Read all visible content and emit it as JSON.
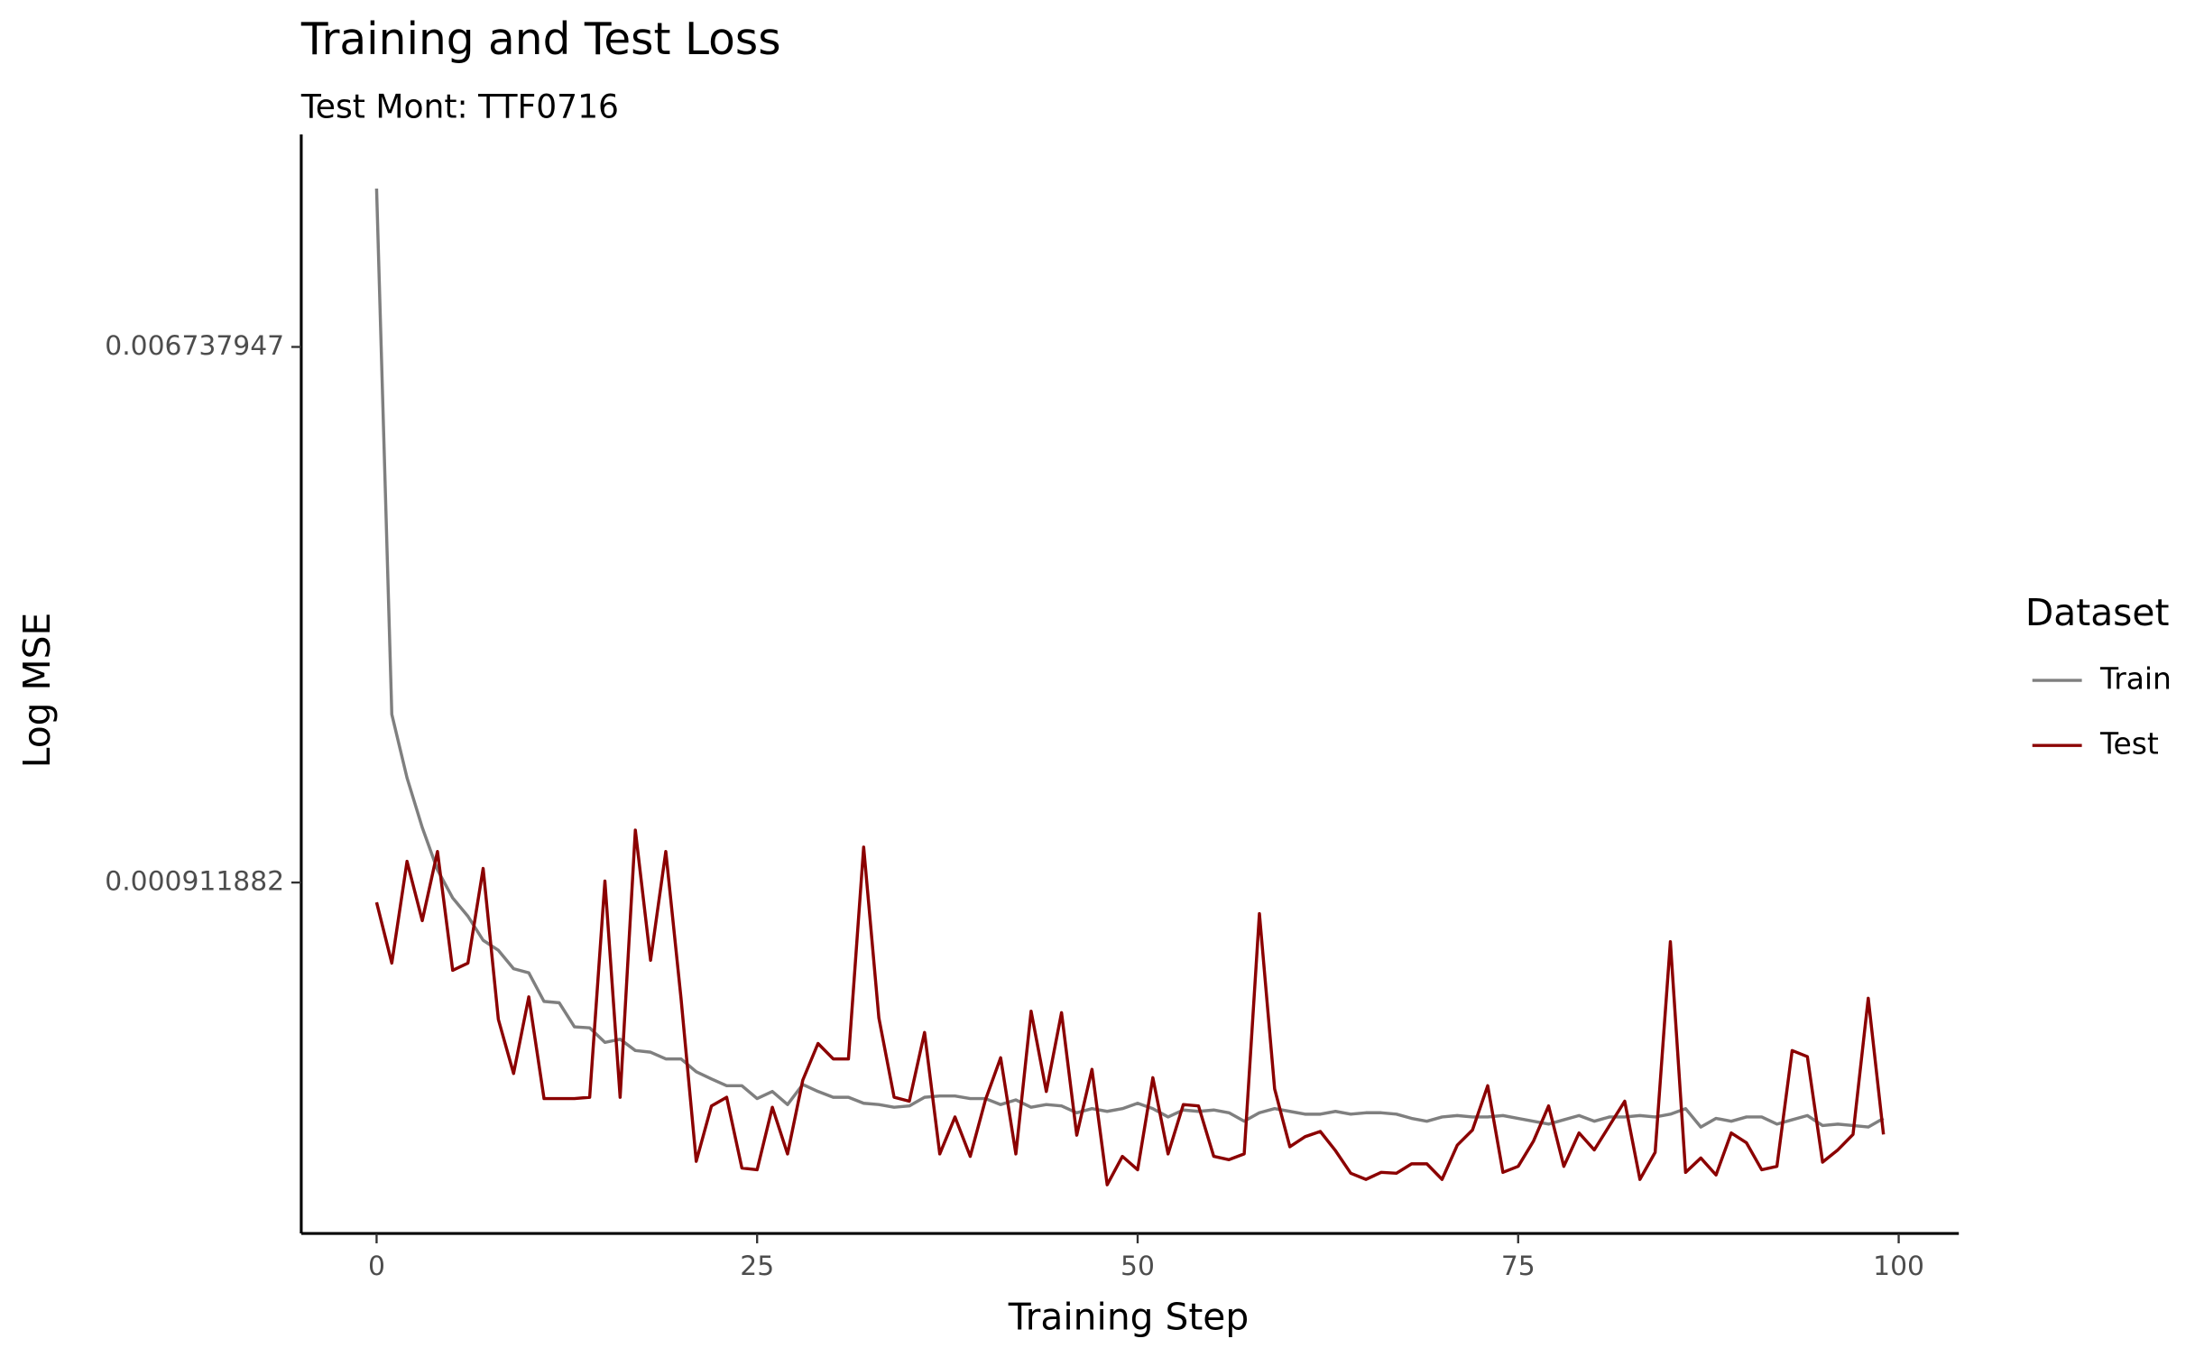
{
  "chart_data": {
    "type": "line",
    "title": "Training and Test Loss",
    "subtitle": "Test Mont: TTF0716",
    "x_label": "Training Step",
    "y_label": "Log MSE",
    "legend_title": "Dataset",
    "log_y": true,
    "grid": false,
    "x": [
      0,
      1,
      2,
      3,
      4,
      5,
      6,
      7,
      8,
      9,
      10,
      11,
      12,
      13,
      14,
      15,
      16,
      17,
      18,
      19,
      20,
      21,
      22,
      23,
      24,
      25,
      26,
      27,
      28,
      29,
      30,
      31,
      32,
      33,
      34,
      35,
      36,
      37,
      38,
      39,
      40,
      41,
      42,
      43,
      44,
      45,
      46,
      47,
      48,
      49,
      50,
      51,
      52,
      53,
      54,
      55,
      56,
      57,
      58,
      59,
      60,
      61,
      62,
      63,
      64,
      65,
      66,
      67,
      68,
      69,
      70,
      71,
      72,
      73,
      74,
      75,
      76,
      77,
      78,
      79,
      80,
      81,
      82,
      83,
      84,
      85,
      86,
      87,
      88,
      89,
      90,
      91,
      92,
      93,
      94,
      95,
      96,
      97,
      98,
      99
    ],
    "series": [
      {
        "name": "Train",
        "color": "#7f7f7f",
        "values": [
          0.01217,
          0.001709,
          0.001348,
          0.00112,
          0.000956,
          0.000861,
          0.000804,
          0.000735,
          0.000708,
          0.000661,
          0.000651,
          0.000585,
          0.000582,
          0.000532,
          0.00053,
          0.000502,
          0.000508,
          0.000487,
          0.000484,
          0.000472,
          0.000472,
          0.00045,
          0.000438,
          0.000427,
          0.000427,
          0.000407,
          0.000418,
          0.000398,
          0.000429,
          0.000418,
          0.000409,
          0.000409,
          0.0004,
          0.000398,
          0.000394,
          0.000396,
          0.000409,
          0.000411,
          0.000411,
          0.000407,
          0.000407,
          0.000398,
          0.000405,
          0.000394,
          0.000398,
          0.000396,
          0.000386,
          0.000392,
          0.000388,
          0.000392,
          0.0004,
          0.000392,
          0.00038,
          0.00039,
          0.000388,
          0.00039,
          0.000386,
          0.000374,
          0.000386,
          0.000392,
          0.000388,
          0.000384,
          0.000384,
          0.000388,
          0.000384,
          0.000386,
          0.000386,
          0.000384,
          0.000378,
          0.000374,
          0.00038,
          0.000382,
          0.00038,
          0.00038,
          0.000382,
          0.000378,
          0.000374,
          0.00037,
          0.000376,
          0.000382,
          0.000374,
          0.00038,
          0.00038,
          0.000382,
          0.00038,
          0.000384,
          0.000392,
          0.000366,
          0.000378,
          0.000374,
          0.00038,
          0.00038,
          0.00037,
          0.000376,
          0.000382,
          0.000368,
          0.00037,
          0.000368,
          0.000366,
          0.000378
        ]
      },
      {
        "name": "Test",
        "color": "#8b0000",
        "values": [
          0.000847,
          0.000675,
          0.000987,
          0.000791,
          0.001024,
          0.000657,
          0.000675,
          0.000961,
          0.000547,
          0.000447,
          0.000595,
          0.000407,
          0.000407,
          0.000407,
          0.000409,
          0.000917,
          0.000409,
          0.001109,
          0.000682,
          0.001024,
          0.000592,
          0.000322,
          0.000396,
          0.000409,
          0.000314,
          0.000312,
          0.000394,
          0.000331,
          0.000436,
          0.0005,
          0.000472,
          0.000472,
          0.001041,
          0.00055,
          0.000409,
          0.000403,
          0.000521,
          0.000331,
          0.00038,
          0.000328,
          0.000405,
          0.000474,
          0.000331,
          0.000564,
          0.000418,
          0.000561,
          0.000355,
          0.000454,
          0.000295,
          0.000328,
          0.000312,
          0.00044,
          0.000331,
          0.000398,
          0.000396,
          0.000328,
          0.000324,
          0.000331,
          0.000812,
          0.000422,
          0.00034,
          0.000353,
          0.00036,
          0.000335,
          0.000308,
          0.000301,
          0.000309,
          0.000308,
          0.000319,
          0.000319,
          0.000301,
          0.000342,
          0.000362,
          0.000427,
          0.000309,
          0.000316,
          0.000347,
          0.000396,
          0.000316,
          0.000358,
          0.000336,
          0.000368,
          0.000403,
          0.000301,
          0.000333,
          0.000731,
          0.000309,
          0.000326,
          0.000306,
          0.000358,
          0.000345,
          0.000312,
          0.000316,
          0.000487,
          0.000476,
          0.000321,
          0.000336,
          0.000356,
          0.000592,
          0.000356
        ]
      }
    ],
    "xlim": [
      -4.95,
      103.95
    ],
    "xticks": [
      0,
      25,
      50,
      75,
      100
    ],
    "ylim": [
      0.000246,
      0.0149
    ],
    "yticks": [
      0.000911882,
      0.006737947
    ]
  }
}
